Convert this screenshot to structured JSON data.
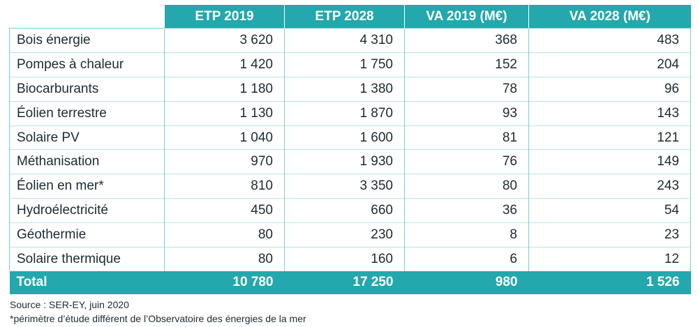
{
  "headers": [
    "ETP 2019",
    "ETP 2028",
    "VA 2019 (M€)",
    "VA 2028 (M€)"
  ],
  "rows": [
    {
      "label": "Bois énergie",
      "values": [
        "3 620",
        "4 310",
        "368",
        "483"
      ]
    },
    {
      "label": "Pompes à chaleur",
      "values": [
        "1 420",
        "1 750",
        "152",
        "204"
      ]
    },
    {
      "label": "Biocarburants",
      "values": [
        "1 180",
        "1 380",
        "78",
        "96"
      ]
    },
    {
      "label": "Éolien terrestre",
      "values": [
        "1 130",
        "1 870",
        "93",
        "143"
      ]
    },
    {
      "label": "Solaire PV",
      "values": [
        "1 040",
        "1 600",
        "81",
        "121"
      ]
    },
    {
      "label": "Méthanisation",
      "values": [
        "970",
        "1 930",
        "76",
        "149"
      ]
    },
    {
      "label": "Éolien en mer*",
      "values": [
        "810",
        "3 350",
        "80",
        "243"
      ]
    },
    {
      "label": "Hydroélectricité",
      "values": [
        "450",
        "660",
        "36",
        "54"
      ]
    },
    {
      "label": "Géothermie",
      "values": [
        "80",
        "230",
        "8",
        "23"
      ]
    },
    {
      "label": "Solaire thermique",
      "values": [
        "80",
        "160",
        "6",
        "12"
      ]
    }
  ],
  "total": {
    "label": "Total",
    "values": [
      "10 780",
      "17 250",
      "980",
      "1 526"
    ]
  },
  "source": "Source : SER-EY, juin 2020",
  "footnote": "*périmètre d’étude différent de l’Observatoire des énergies de la mer",
  "colors": {
    "accent": "#22a8ad",
    "border": "#7ccbcf"
  }
}
